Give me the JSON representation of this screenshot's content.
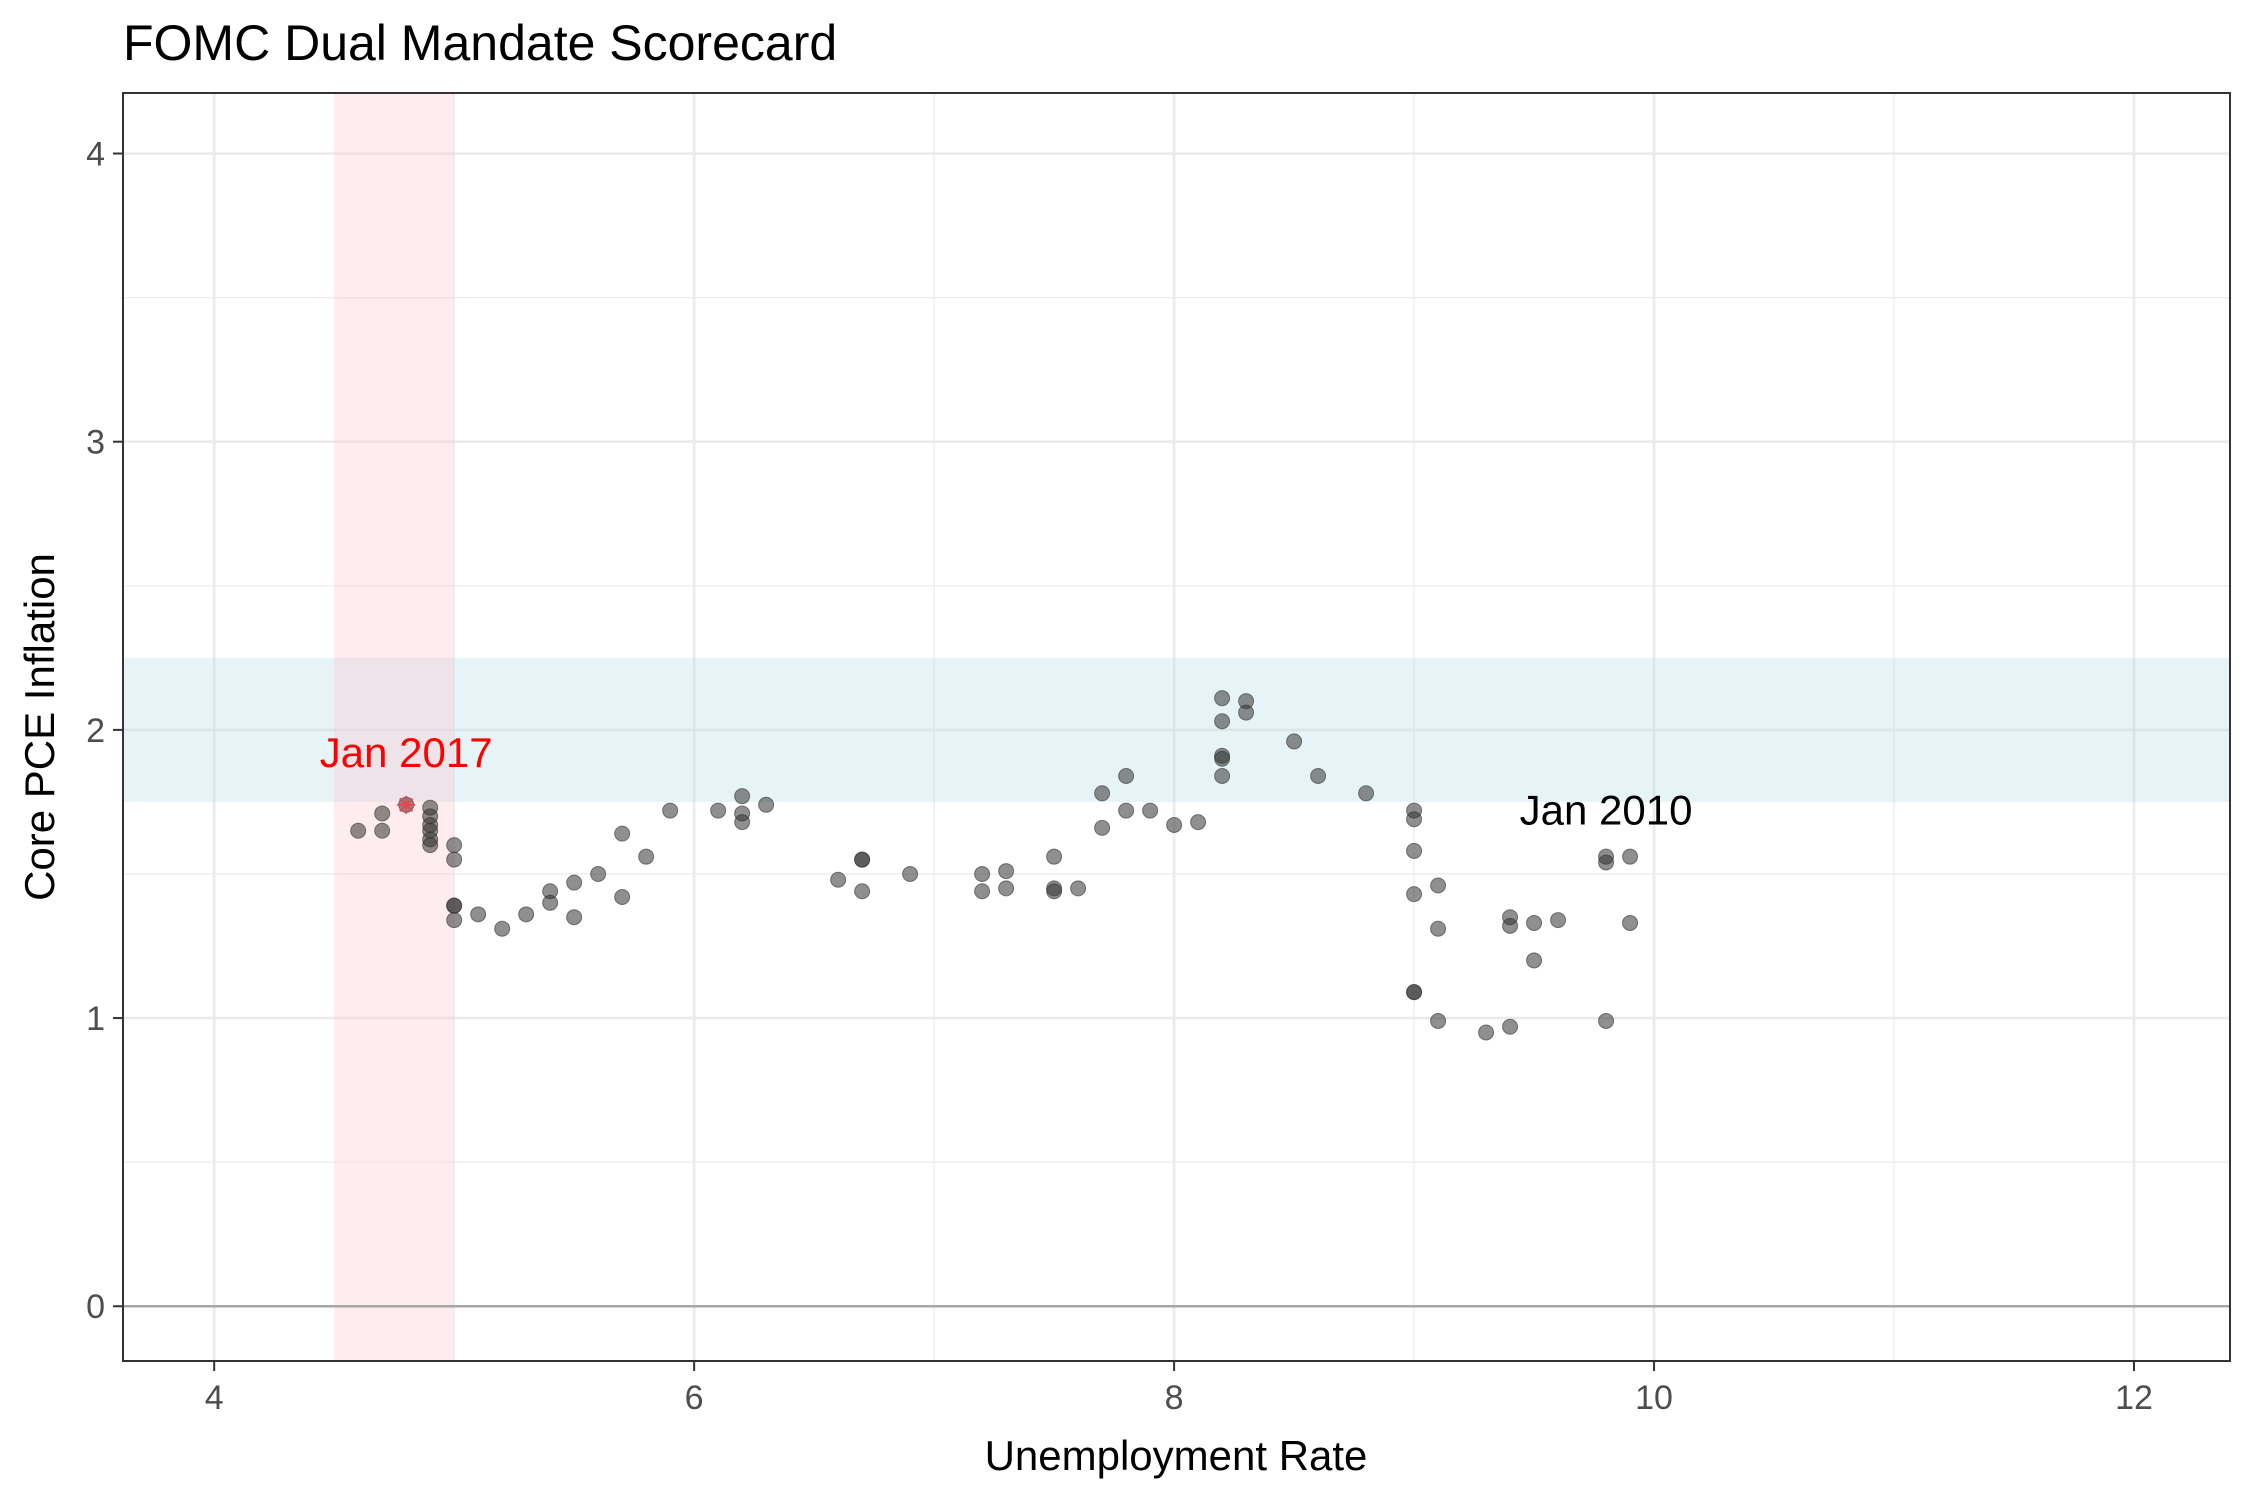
{
  "chart_data": {
    "type": "scatter",
    "title": "FOMC Dual Mandate Scorecard",
    "xlabel": "Unemployment Rate",
    "ylabel": "Core PCE Inflation",
    "xlim": [
      3.62,
      12.4
    ],
    "ylim": [
      -0.19,
      4.21
    ],
    "x_ticks": [
      4,
      6,
      8,
      10,
      12
    ],
    "y_ticks": [
      0,
      1,
      2,
      3,
      4
    ],
    "grid": true,
    "legend": "none",
    "colors": {
      "point": "#333333",
      "highlight": "#e8484b",
      "target_band": "#add8e6",
      "unemployment_band": "#ffc0cb",
      "zero_line": "#a6a6a6",
      "grid": "#ebebeb",
      "annotation_start": "#000000",
      "annotation_end": "#ff0000"
    },
    "inflation_target_band": [
      1.75,
      2.25
    ],
    "unemployment_target_band": [
      4.5,
      5.0
    ],
    "annotations": [
      {
        "text": "Jan 2010",
        "x": 9.8,
        "y": 1.72,
        "color": "#000000"
      },
      {
        "text": "Jan 2017",
        "x": 4.8,
        "y": 1.92,
        "color": "#ff0000"
      }
    ],
    "highlight_point": {
      "x": 4.8,
      "y": 1.74
    },
    "points": [
      {
        "x": 9.8,
        "y": 1.56
      },
      {
        "x": 9.8,
        "y": 1.54
      },
      {
        "x": 9.9,
        "y": 1.56
      },
      {
        "x": 9.9,
        "y": 1.33
      },
      {
        "x": 9.6,
        "y": 1.34
      },
      {
        "x": 9.4,
        "y": 1.35
      },
      {
        "x": 9.4,
        "y": 1.32
      },
      {
        "x": 9.5,
        "y": 1.33
      },
      {
        "x": 9.5,
        "y": 1.2
      },
      {
        "x": 9.4,
        "y": 0.97
      },
      {
        "x": 9.3,
        "y": 0.95
      },
      {
        "x": 9.8,
        "y": 0.99
      },
      {
        "x": 9.1,
        "y": 0.99
      },
      {
        "x": 9.0,
        "y": 1.09
      },
      {
        "x": 9.0,
        "y": 1.09
      },
      {
        "x": 9.0,
        "y": 1.43
      },
      {
        "x": 9.1,
        "y": 1.31
      },
      {
        "x": 9.1,
        "y": 1.46
      },
      {
        "x": 9.0,
        "y": 1.58
      },
      {
        "x": 9.0,
        "y": 1.69
      },
      {
        "x": 9.0,
        "y": 1.72
      },
      {
        "x": 8.8,
        "y": 1.78
      },
      {
        "x": 8.6,
        "y": 1.84
      },
      {
        "x": 8.5,
        "y": 1.96
      },
      {
        "x": 8.3,
        "y": 2.06
      },
      {
        "x": 8.3,
        "y": 2.1
      },
      {
        "x": 8.2,
        "y": 2.11
      },
      {
        "x": 8.2,
        "y": 2.03
      },
      {
        "x": 8.2,
        "y": 1.91
      },
      {
        "x": 8.2,
        "y": 1.9
      },
      {
        "x": 8.2,
        "y": 1.84
      },
      {
        "x": 8.1,
        "y": 1.68
      },
      {
        "x": 8.0,
        "y": 1.67
      },
      {
        "x": 7.9,
        "y": 1.72
      },
      {
        "x": 7.8,
        "y": 1.72
      },
      {
        "x": 7.8,
        "y": 1.84
      },
      {
        "x": 7.7,
        "y": 1.78
      },
      {
        "x": 7.7,
        "y": 1.66
      },
      {
        "x": 7.6,
        "y": 1.45
      },
      {
        "x": 7.5,
        "y": 1.56
      },
      {
        "x": 7.5,
        "y": 1.45
      },
      {
        "x": 7.5,
        "y": 1.44
      },
      {
        "x": 7.3,
        "y": 1.51
      },
      {
        "x": 7.3,
        "y": 1.45
      },
      {
        "x": 7.2,
        "y": 1.5
      },
      {
        "x": 7.2,
        "y": 1.44
      },
      {
        "x": 6.9,
        "y": 1.5
      },
      {
        "x": 6.7,
        "y": 1.55
      },
      {
        "x": 6.7,
        "y": 1.55
      },
      {
        "x": 6.7,
        "y": 1.44
      },
      {
        "x": 6.6,
        "y": 1.48
      },
      {
        "x": 6.3,
        "y": 1.74
      },
      {
        "x": 6.2,
        "y": 1.77
      },
      {
        "x": 6.2,
        "y": 1.71
      },
      {
        "x": 6.2,
        "y": 1.68
      },
      {
        "x": 6.1,
        "y": 1.72
      },
      {
        "x": 5.9,
        "y": 1.72
      },
      {
        "x": 5.8,
        "y": 1.56
      },
      {
        "x": 5.7,
        "y": 1.64
      },
      {
        "x": 5.7,
        "y": 1.42
      },
      {
        "x": 5.6,
        "y": 1.5
      },
      {
        "x": 5.5,
        "y": 1.47
      },
      {
        "x": 5.5,
        "y": 1.35
      },
      {
        "x": 5.4,
        "y": 1.44
      },
      {
        "x": 5.4,
        "y": 1.4
      },
      {
        "x": 5.3,
        "y": 1.36
      },
      {
        "x": 5.2,
        "y": 1.31
      },
      {
        "x": 5.1,
        "y": 1.36
      },
      {
        "x": 5.0,
        "y": 1.39
      },
      {
        "x": 5.0,
        "y": 1.39
      },
      {
        "x": 5.0,
        "y": 1.34
      },
      {
        "x": 5.0,
        "y": 1.55
      },
      {
        "x": 5.0,
        "y": 1.6
      },
      {
        "x": 4.9,
        "y": 1.6
      },
      {
        "x": 4.9,
        "y": 1.62
      },
      {
        "x": 4.9,
        "y": 1.65
      },
      {
        "x": 4.9,
        "y": 1.67
      },
      {
        "x": 4.9,
        "y": 1.7
      },
      {
        "x": 4.9,
        "y": 1.73
      },
      {
        "x": 4.8,
        "y": 1.74
      },
      {
        "x": 4.7,
        "y": 1.71
      },
      {
        "x": 4.7,
        "y": 1.65
      },
      {
        "x": 4.6,
        "y": 1.65
      }
    ]
  }
}
